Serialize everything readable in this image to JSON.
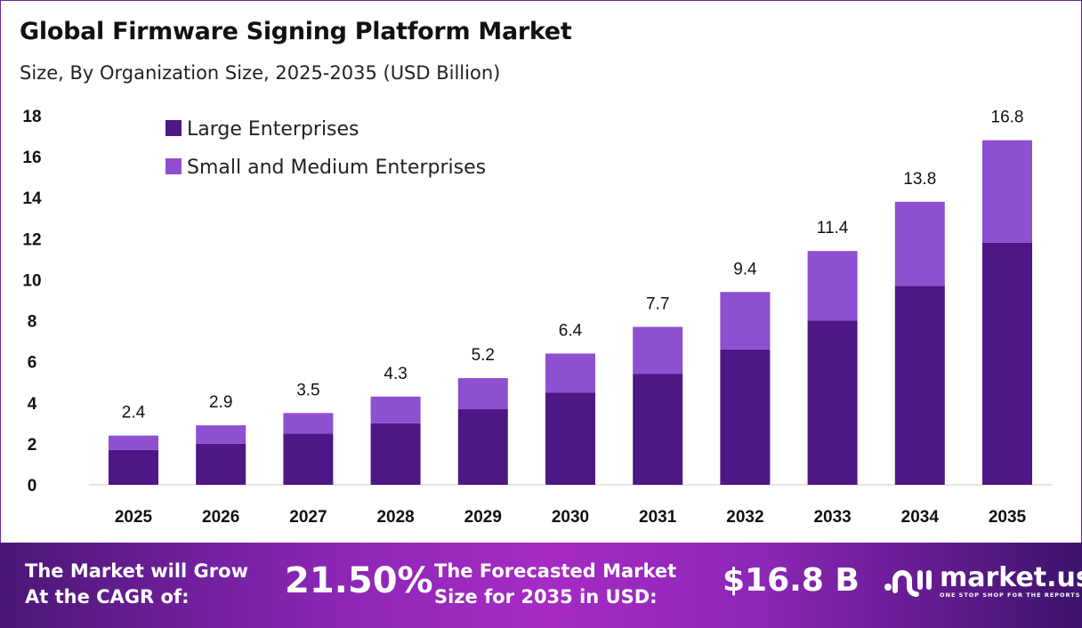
{
  "chart_data": {
    "type": "bar",
    "stacked": true,
    "title": "Global Firmware Signing Platform Market",
    "subtitle": "Size, By Organization Size, 2025-2035 (USD Billion)",
    "categories": [
      "2025",
      "2026",
      "2027",
      "2028",
      "2029",
      "2030",
      "2031",
      "2032",
      "2033",
      "2034",
      "2035"
    ],
    "series": [
      {
        "name": "Large Enterprises",
        "color": "#4e1785",
        "values": [
          1.7,
          2.0,
          2.5,
          3.0,
          3.7,
          4.5,
          5.4,
          6.6,
          8.0,
          9.7,
          11.8
        ]
      },
      {
        "name": "Small and Medium Enterprises",
        "color": "#8e4fd0",
        "values": [
          0.7,
          0.9,
          1.0,
          1.3,
          1.5,
          1.9,
          2.3,
          2.8,
          3.4,
          4.1,
          5.0
        ]
      }
    ],
    "totals": [
      "2.4",
      "2.9",
      "3.5",
      "4.3",
      "5.2",
      "6.4",
      "7.7",
      "9.4",
      "11.4",
      "13.8",
      "16.8"
    ],
    "yticks": [
      "0",
      "2",
      "4",
      "6",
      "8",
      "10",
      "12",
      "14",
      "16",
      "18"
    ],
    "ylim": [
      0,
      18
    ],
    "grid": false,
    "legend": "top-left"
  },
  "footer": {
    "cagr_label_1": "The Market will Grow",
    "cagr_label_2": "At the CAGR of:",
    "cagr_value": "21.50%",
    "forecast_label_1": "The Forecasted Market",
    "forecast_label_2": "Size for 2035 in USD:",
    "forecast_value": "$16.8 B",
    "logo_name": "market.us",
    "logo_tagline": "ONE STOP SHOP FOR THE REPORTS"
  }
}
